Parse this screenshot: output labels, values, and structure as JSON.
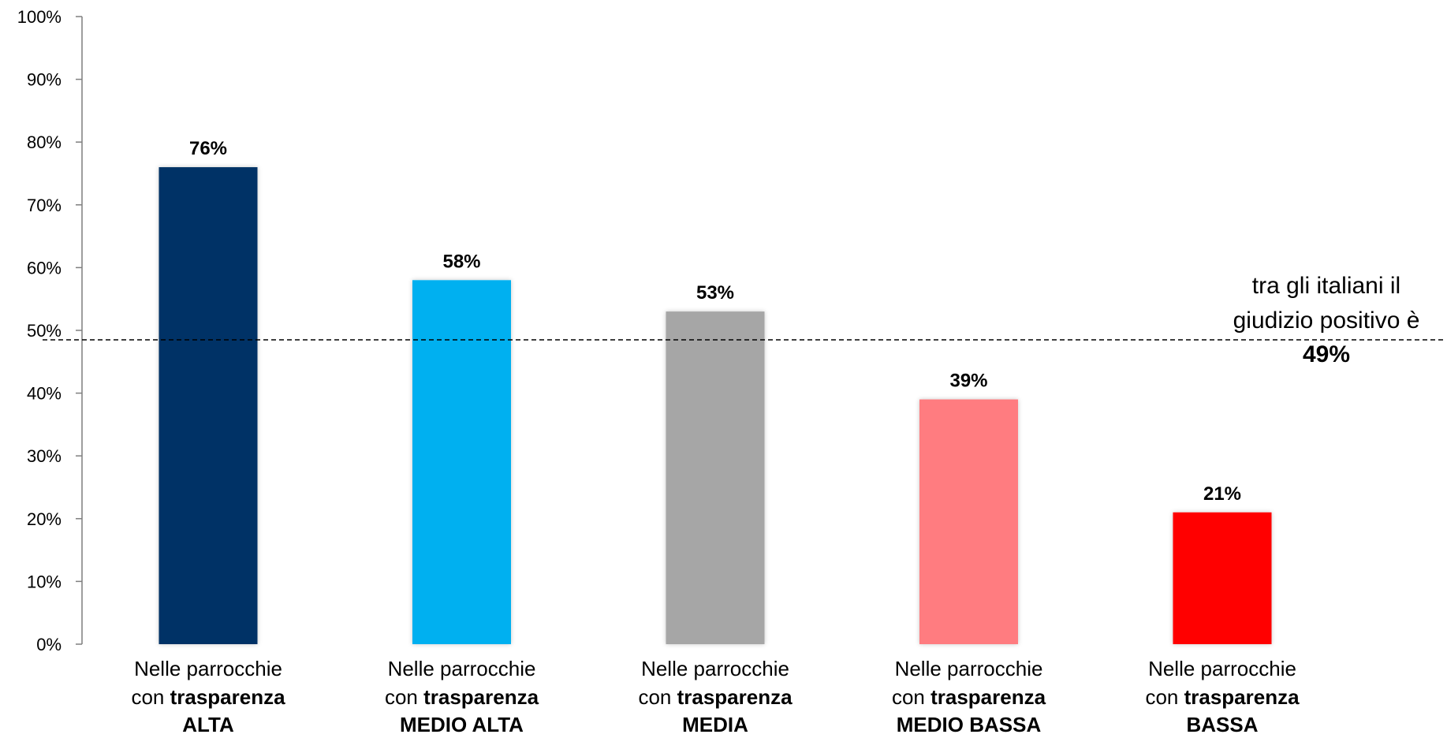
{
  "chart_data": {
    "type": "bar",
    "categories": [
      {
        "line1": "Nelle parrocchie",
        "line2_prefix": "con ",
        "line2_bold": "trasparenza",
        "line3_bold": "ALTA"
      },
      {
        "line1": "Nelle parrocchie",
        "line2_prefix": "con ",
        "line2_bold": "trasparenza",
        "line3_bold": "MEDIO ALTA"
      },
      {
        "line1": "Nelle parrocchie",
        "line2_prefix": "con ",
        "line2_bold": "trasparenza",
        "line3_bold": "MEDIA"
      },
      {
        "line1": "Nelle parrocchie",
        "line2_prefix": "con ",
        "line2_bold": "trasparenza",
        "line3_bold": "MEDIO BASSA"
      },
      {
        "line1": "Nelle parrocchie",
        "line2_prefix": "con ",
        "line2_bold": "trasparenza",
        "line3_bold": "BASSA"
      }
    ],
    "values": [
      76,
      58,
      53,
      39,
      21
    ],
    "data_labels": [
      "76%",
      "58%",
      "53%",
      "39%",
      "21%"
    ],
    "colors": [
      "#003366",
      "#00b0f0",
      "#a6a6a6",
      "#ff7c80",
      "#ff0000"
    ],
    "ylim": [
      0,
      100
    ],
    "yticks": [
      {
        "value": 0,
        "label": "0%"
      },
      {
        "value": 10,
        "label": "10%"
      },
      {
        "value": 20,
        "label": "20%"
      },
      {
        "value": 30,
        "label": "30%"
      },
      {
        "value": 40,
        "label": "40%"
      },
      {
        "value": 50,
        "label": "50%"
      },
      {
        "value": 60,
        "label": "60%"
      },
      {
        "value": 70,
        "label": "70%"
      },
      {
        "value": 80,
        "label": "80%"
      },
      {
        "value": 90,
        "label": "90%"
      },
      {
        "value": 100,
        "label": "100%"
      }
    ],
    "grid": false,
    "reference_line": {
      "value": 48.5,
      "style": "dashed",
      "text_lines": [
        "tra gli italiani il",
        "giudizio positivo è"
      ],
      "value_text": "49%"
    }
  }
}
